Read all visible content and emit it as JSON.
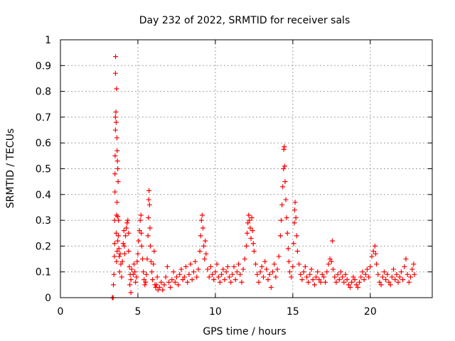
{
  "chart_data": {
    "type": "scatter",
    "title": "Day 232 of 2022, SRMTID for receiver sals",
    "xlabel": "GPS time / hours",
    "ylabel": "SRMTID / TECUs",
    "xlim": [
      0,
      24
    ],
    "ylim": [
      0,
      1
    ],
    "xticks": [
      0,
      5,
      10,
      15,
      20
    ],
    "xtick_labels": [
      "0",
      "5",
      "10",
      "15",
      "20"
    ],
    "yticks": [
      0,
      0.1,
      0.2,
      0.3,
      0.4,
      0.5,
      0.6,
      0.7,
      0.8,
      0.9,
      1
    ],
    "ytick_labels": [
      "0",
      "0.1",
      "0.2",
      "0.3",
      "0.4",
      "0.5",
      "0.6",
      "0.7",
      "0.8",
      "0.9",
      "1"
    ],
    "grid": true,
    "marker": "plus",
    "color": "#ff0000",
    "series": [
      {
        "name": "SRMTID",
        "points": [
          [
            3.35,
            0.0
          ],
          [
            3.4,
            0.0
          ],
          [
            3.42,
            0.05
          ],
          [
            3.45,
            0.09
          ],
          [
            3.48,
            0.16
          ],
          [
            3.5,
            0.21
          ],
          [
            3.5,
            0.3
          ],
          [
            3.52,
            0.41
          ],
          [
            3.52,
            0.48
          ],
          [
            3.53,
            0.55
          ],
          [
            3.55,
            0.65
          ],
          [
            3.55,
            0.7
          ],
          [
            3.58,
            0.72
          ],
          [
            3.55,
            0.87
          ],
          [
            3.56,
            0.935
          ],
          [
            3.62,
            0.81
          ],
          [
            3.6,
            0.68
          ],
          [
            3.65,
            0.62
          ],
          [
            3.66,
            0.57
          ],
          [
            3.68,
            0.53
          ],
          [
            3.7,
            0.5
          ],
          [
            3.72,
            0.45
          ],
          [
            3.65,
            0.37
          ],
          [
            3.62,
            0.32
          ],
          [
            3.7,
            0.315
          ],
          [
            3.75,
            0.3
          ],
          [
            3.6,
            0.25
          ],
          [
            3.7,
            0.22
          ],
          [
            3.78,
            0.19
          ],
          [
            3.8,
            0.16
          ],
          [
            3.62,
            0.14
          ],
          [
            3.66,
            0.18
          ],
          [
            3.74,
            0.24
          ],
          [
            3.85,
            0.17
          ],
          [
            3.9,
            0.13
          ],
          [
            3.82,
            0.1
          ],
          [
            3.95,
            0.08
          ],
          [
            4.0,
            0.14
          ],
          [
            4.05,
            0.21
          ],
          [
            4.1,
            0.26
          ],
          [
            4.12,
            0.2
          ],
          [
            4.15,
            0.17
          ],
          [
            4.2,
            0.24
          ],
          [
            4.25,
            0.27
          ],
          [
            4.3,
            0.29
          ],
          [
            4.35,
            0.3
          ],
          [
            4.4,
            0.25
          ],
          [
            4.4,
            0.18
          ],
          [
            4.45,
            0.12
          ],
          [
            4.5,
            0.09
          ],
          [
            4.48,
            0.05
          ],
          [
            4.55,
            0.07
          ],
          [
            4.6,
            0.11
          ],
          [
            4.55,
            0.02
          ],
          [
            4.7,
            0.09
          ],
          [
            4.75,
            0.13
          ],
          [
            4.8,
            0.1
          ],
          [
            4.85,
            0.06
          ],
          [
            4.9,
            0.08
          ],
          [
            4.95,
            0.14
          ],
          [
            5.0,
            0.17
          ],
          [
            5.05,
            0.22
          ],
          [
            5.1,
            0.26
          ],
          [
            5.15,
            0.3
          ],
          [
            5.2,
            0.32
          ],
          [
            5.22,
            0.25
          ],
          [
            5.25,
            0.2
          ],
          [
            5.3,
            0.15
          ],
          [
            5.35,
            0.1
          ],
          [
            5.4,
            0.07
          ],
          [
            5.45,
            0.05
          ],
          [
            5.5,
            0.06
          ],
          [
            5.55,
            0.09
          ],
          [
            5.6,
            0.15
          ],
          [
            5.65,
            0.24
          ],
          [
            5.68,
            0.31
          ],
          [
            5.7,
            0.38
          ],
          [
            5.72,
            0.415
          ],
          [
            5.75,
            0.36
          ],
          [
            5.78,
            0.27
          ],
          [
            5.8,
            0.2
          ],
          [
            5.85,
            0.14
          ],
          [
            5.9,
            0.1
          ],
          [
            5.95,
            0.07
          ],
          [
            6.0,
            0.13
          ],
          [
            6.05,
            0.18
          ],
          [
            6.1,
            0.05
          ],
          [
            6.15,
            0.04
          ],
          [
            6.2,
            0.05
          ],
          [
            6.25,
            0.08
          ],
          [
            6.3,
            0.03
          ],
          [
            6.4,
            0.04
          ],
          [
            6.5,
            0.06
          ],
          [
            6.6,
            0.03
          ],
          [
            6.7,
            0.05
          ],
          [
            6.8,
            0.08
          ],
          [
            6.9,
            0.12
          ],
          [
            7.0,
            0.06
          ],
          [
            7.1,
            0.04
          ],
          [
            7.2,
            0.07
          ],
          [
            7.3,
            0.1
          ],
          [
            7.4,
            0.06
          ],
          [
            7.5,
            0.08
          ],
          [
            7.6,
            0.05
          ],
          [
            7.7,
            0.09
          ],
          [
            7.8,
            0.11
          ],
          [
            7.9,
            0.07
          ],
          [
            8.0,
            0.08
          ],
          [
            8.1,
            0.12
          ],
          [
            8.2,
            0.06
          ],
          [
            8.3,
            0.09
          ],
          [
            8.4,
            0.13
          ],
          [
            8.5,
            0.07
          ],
          [
            8.6,
            0.1
          ],
          [
            8.7,
            0.14
          ],
          [
            8.8,
            0.08
          ],
          [
            8.9,
            0.11
          ],
          [
            9.0,
            0.18
          ],
          [
            9.05,
            0.24
          ],
          [
            9.1,
            0.3
          ],
          [
            9.15,
            0.32
          ],
          [
            9.2,
            0.27
          ],
          [
            9.25,
            0.2
          ],
          [
            9.3,
            0.15
          ],
          [
            9.35,
            0.22
          ],
          [
            9.4,
            0.17
          ],
          [
            9.5,
            0.11
          ],
          [
            9.6,
            0.08
          ],
          [
            9.7,
            0.12
          ],
          [
            9.8,
            0.09
          ],
          [
            9.9,
            0.07
          ],
          [
            10.0,
            0.1
          ],
          [
            10.1,
            0.13
          ],
          [
            10.2,
            0.08
          ],
          [
            10.3,
            0.06
          ],
          [
            10.4,
            0.09
          ],
          [
            10.5,
            0.11
          ],
          [
            10.6,
            0.07
          ],
          [
            10.7,
            0.1
          ],
          [
            10.8,
            0.12
          ],
          [
            10.9,
            0.08
          ],
          [
            11.0,
            0.06
          ],
          [
            11.1,
            0.09
          ],
          [
            11.2,
            0.12
          ],
          [
            11.3,
            0.07
          ],
          [
            11.4,
            0.1
          ],
          [
            11.5,
            0.13
          ],
          [
            11.6,
            0.09
          ],
          [
            11.7,
            0.06
          ],
          [
            11.8,
            0.11
          ],
          [
            11.9,
            0.15
          ],
          [
            12.0,
            0.2
          ],
          [
            12.05,
            0.25
          ],
          [
            12.1,
            0.29
          ],
          [
            12.15,
            0.32
          ],
          [
            12.2,
            0.3
          ],
          [
            12.25,
            0.27
          ],
          [
            12.3,
            0.23
          ],
          [
            12.35,
            0.31
          ],
          [
            12.4,
            0.26
          ],
          [
            12.45,
            0.21
          ],
          [
            12.5,
            0.18
          ],
          [
            12.6,
            0.13
          ],
          [
            12.7,
            0.09
          ],
          [
            12.8,
            0.06
          ],
          [
            12.9,
            0.1
          ],
          [
            13.0,
            0.12
          ],
          [
            13.1,
            0.08
          ],
          [
            13.2,
            0.14
          ],
          [
            13.3,
            0.11
          ],
          [
            13.4,
            0.07
          ],
          [
            13.5,
            0.09
          ],
          [
            13.6,
            0.04
          ],
          [
            13.7,
            0.1
          ],
          [
            13.8,
            0.13
          ],
          [
            13.9,
            0.08
          ],
          [
            14.0,
            0.11
          ],
          [
            14.1,
            0.16
          ],
          [
            14.2,
            0.24
          ],
          [
            14.25,
            0.3
          ],
          [
            14.3,
            0.36
          ],
          [
            14.35,
            0.43
          ],
          [
            14.4,
            0.5
          ],
          [
            14.42,
            0.575
          ],
          [
            14.45,
            0.585
          ],
          [
            14.48,
            0.51
          ],
          [
            14.5,
            0.45
          ],
          [
            14.55,
            0.38
          ],
          [
            14.6,
            0.31
          ],
          [
            14.65,
            0.25
          ],
          [
            14.7,
            0.19
          ],
          [
            14.75,
            0.14
          ],
          [
            14.8,
            0.1
          ],
          [
            14.9,
            0.08
          ],
          [
            15.0,
            0.12
          ],
          [
            15.05,
            0.21
          ],
          [
            15.1,
            0.29
          ],
          [
            15.12,
            0.34
          ],
          [
            15.15,
            0.37
          ],
          [
            15.2,
            0.31
          ],
          [
            15.25,
            0.24
          ],
          [
            15.3,
            0.18
          ],
          [
            15.4,
            0.13
          ],
          [
            15.5,
            0.09
          ],
          [
            15.6,
            0.07
          ],
          [
            15.7,
            0.1
          ],
          [
            15.8,
            0.12
          ],
          [
            15.9,
            0.08
          ],
          [
            16.0,
            0.06
          ],
          [
            16.1,
            0.09
          ],
          [
            16.2,
            0.11
          ],
          [
            16.3,
            0.07
          ],
          [
            16.4,
            0.05
          ],
          [
            16.5,
            0.08
          ],
          [
            16.6,
            0.1
          ],
          [
            16.7,
            0.07
          ],
          [
            16.8,
            0.06
          ],
          [
            16.9,
            0.09
          ],
          [
            17.0,
            0.08
          ],
          [
            17.1,
            0.06
          ],
          [
            17.2,
            0.1
          ],
          [
            17.3,
            0.13
          ],
          [
            17.4,
            0.15
          ],
          [
            17.5,
            0.14
          ],
          [
            17.55,
            0.22
          ],
          [
            17.6,
            0.11
          ],
          [
            17.7,
            0.08
          ],
          [
            17.8,
            0.06
          ],
          [
            17.9,
            0.09
          ],
          [
            18.0,
            0.07
          ],
          [
            18.1,
            0.1
          ],
          [
            18.2,
            0.08
          ],
          [
            18.3,
            0.06
          ],
          [
            18.4,
            0.09
          ],
          [
            18.5,
            0.07
          ],
          [
            18.6,
            0.05
          ],
          [
            18.7,
            0.04
          ],
          [
            18.8,
            0.06
          ],
          [
            18.9,
            0.08
          ],
          [
            19.0,
            0.07
          ],
          [
            19.1,
            0.05
          ],
          [
            19.2,
            0.04
          ],
          [
            19.3,
            0.06
          ],
          [
            19.4,
            0.08
          ],
          [
            19.5,
            0.1
          ],
          [
            19.6,
            0.07
          ],
          [
            19.7,
            0.09
          ],
          [
            19.8,
            0.11
          ],
          [
            19.9,
            0.08
          ],
          [
            20.0,
            0.12
          ],
          [
            20.1,
            0.16
          ],
          [
            20.2,
            0.18
          ],
          [
            20.3,
            0.2
          ],
          [
            20.35,
            0.17
          ],
          [
            20.4,
            0.13
          ],
          [
            20.5,
            0.09
          ],
          [
            20.6,
            0.06
          ],
          [
            20.7,
            0.05
          ],
          [
            20.8,
            0.08
          ],
          [
            20.9,
            0.1
          ],
          [
            21.0,
            0.07
          ],
          [
            21.1,
            0.09
          ],
          [
            21.2,
            0.06
          ],
          [
            21.3,
            0.05
          ],
          [
            21.4,
            0.08
          ],
          [
            21.5,
            0.11
          ],
          [
            21.6,
            0.07
          ],
          [
            21.7,
            0.09
          ],
          [
            21.8,
            0.06
          ],
          [
            21.9,
            0.08
          ],
          [
            22.0,
            0.1
          ],
          [
            22.1,
            0.07
          ],
          [
            22.2,
            0.12
          ],
          [
            22.3,
            0.15
          ],
          [
            22.4,
            0.09
          ],
          [
            22.5,
            0.06
          ],
          [
            22.6,
            0.08
          ],
          [
            22.7,
            0.11
          ],
          [
            22.8,
            0.13
          ],
          [
            22.85,
            0.09
          ]
        ]
      }
    ]
  }
}
